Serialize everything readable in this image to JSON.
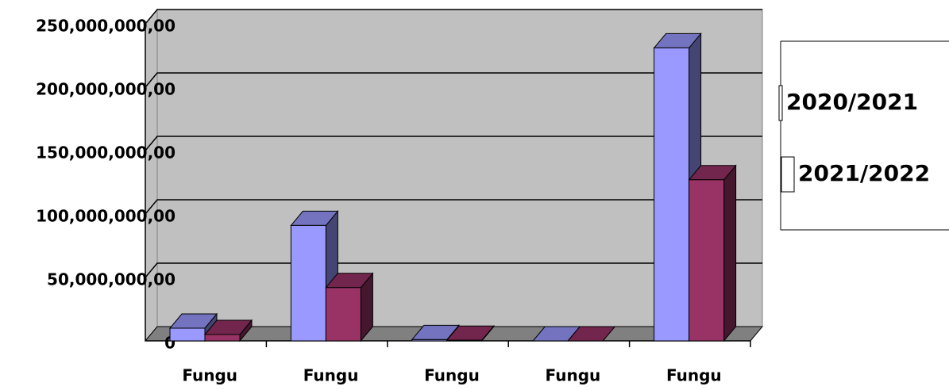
{
  "chart_data": {
    "type": "bar3d",
    "categories": [
      "Fungu",
      "Fungu",
      "Fungu",
      "Fungu",
      "Fungu"
    ],
    "series": [
      {
        "name": "2020/2021",
        "color": "#9999ff",
        "values": [
          10000000,
          91000000,
          1000000,
          0,
          231000000
        ]
      },
      {
        "name": "2021/2022",
        "color": "#993366",
        "values": [
          5000000,
          42000000,
          500000,
          0,
          127000000
        ]
      }
    ],
    "ylim": [
      0,
      250000000
    ],
    "yticks": [
      {
        "value": 0,
        "label": "0"
      },
      {
        "value": 50000000,
        "label": "50,000,000,00"
      },
      {
        "value": 100000000,
        "label": "100,000,000,00"
      },
      {
        "value": 150000000,
        "label": "150,000,000,00"
      },
      {
        "value": 200000000,
        "label": "200,000,000,00"
      },
      {
        "value": 250000000,
        "label": "250,000,000,00"
      }
    ],
    "grid": true,
    "legend": "right"
  }
}
